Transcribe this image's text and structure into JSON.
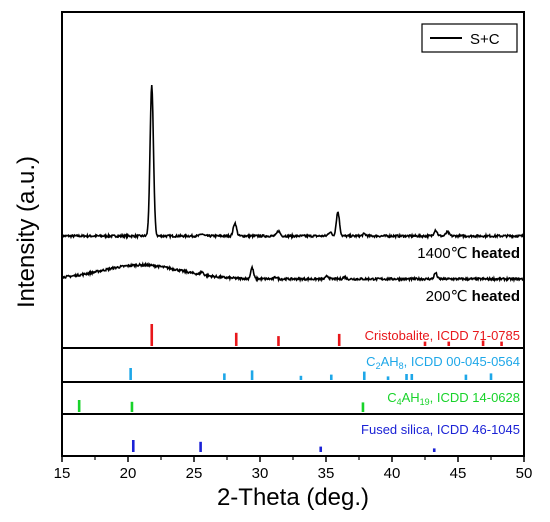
{
  "chart_data": {
    "type": "line",
    "xlabel": "2-Theta (deg.)",
    "ylabel": "Intensity (a.u.)",
    "xlim": [
      15,
      50
    ],
    "xticks": [
      15,
      20,
      25,
      30,
      35,
      40,
      45,
      50
    ],
    "grid": false,
    "legend": {
      "placement": "top-right",
      "entries": [
        "S+C"
      ]
    },
    "series": [
      {
        "name": "S+C",
        "color": "#000000",
        "peaks": [
          [
            21.8,
            150
          ],
          [
            28.1,
            13
          ],
          [
            31.4,
            5
          ],
          [
            35.9,
            24
          ],
          [
            35.3,
            4
          ],
          [
            43.3,
            6
          ],
          [
            44.2,
            4
          ],
          [
            25.6,
            2
          ],
          [
            37.9,
            2
          ]
        ],
        "label_parts": [
          "1400℃",
          " heated"
        ]
      },
      {
        "color": "#000000",
        "hump": {
          "center": 21.0,
          "height": 14
        },
        "peaks": [
          [
            29.4,
            11
          ],
          [
            43.3,
            6
          ],
          [
            25.6,
            3
          ],
          [
            35.1,
            3
          ],
          [
            36.4,
            2
          ],
          [
            31.2,
            2
          ]
        ],
        "label_parts": [
          "200℃",
          " heated"
        ]
      }
    ],
    "references": [
      {
        "parts": {
          "before": "Cristobalite, ICDD 71-0785",
          "sub1": "",
          "mid": "",
          "sub2": "",
          "after": ""
        },
        "color": "#e8171b",
        "lines": [
          [
            21.8,
            1.0
          ],
          [
            28.2,
            0.6
          ],
          [
            31.4,
            0.45
          ],
          [
            36.0,
            0.55
          ],
          [
            42.5,
            0.2
          ],
          [
            44.3,
            0.2
          ],
          [
            46.9,
            0.25
          ],
          [
            48.3,
            0.2
          ]
        ]
      },
      {
        "parts": {
          "before": "C",
          "sub1": "2",
          "mid": "AH",
          "sub2": "8",
          "after": ", ICDD 00-045-0564"
        },
        "color": "#1ea7e8",
        "lines": [
          [
            20.2,
            1.0
          ],
          [
            27.3,
            0.55
          ],
          [
            29.4,
            0.8
          ],
          [
            33.1,
            0.35
          ],
          [
            35.4,
            0.45
          ],
          [
            37.9,
            0.7
          ],
          [
            39.7,
            0.3
          ],
          [
            41.1,
            0.5
          ],
          [
            41.5,
            0.5
          ],
          [
            45.6,
            0.45
          ],
          [
            47.5,
            0.55
          ]
        ]
      },
      {
        "parts": {
          "before": "C",
          "sub1": "4",
          "mid": "AH",
          "sub2": "19",
          "after": ", ICDD 14-0628"
        },
        "color": "#18d32a",
        "lines": [
          [
            16.3,
            1.0
          ],
          [
            20.3,
            0.85
          ],
          [
            37.8,
            0.8
          ]
        ]
      },
      {
        "parts": {
          "before": "Fused silica, ICDD 46-1045",
          "sub1": "",
          "mid": "",
          "sub2": "",
          "after": ""
        },
        "color": "#1b22d6",
        "lines": [
          [
            20.4,
            1.0
          ],
          [
            25.5,
            0.85
          ],
          [
            34.6,
            0.45
          ],
          [
            43.2,
            0.3
          ]
        ]
      }
    ]
  }
}
